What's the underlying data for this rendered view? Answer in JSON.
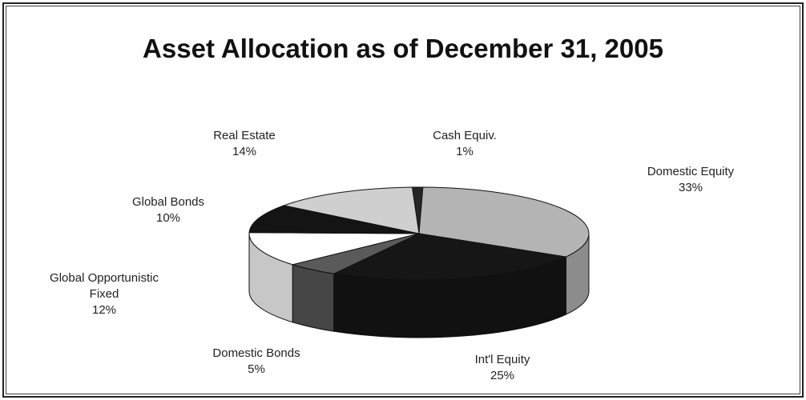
{
  "chart_data": {
    "type": "pie",
    "title": "Asset Allocation as of December 31, 2005",
    "categories": [
      "Cash Equiv.",
      "Domestic Equity",
      "Int'l Equity",
      "Domestic Bonds",
      "Global Opportunistic Fixed",
      "Global Bonds",
      "Real Estate"
    ],
    "values": [
      1,
      33,
      25,
      5,
      12,
      10,
      14
    ],
    "value_labels": [
      "1%",
      "33%",
      "25%",
      "5%",
      "12%",
      "10%",
      "14%"
    ],
    "colors": [
      "#262626",
      "#b4b4b4",
      "#161616",
      "#5a5a5a",
      "#ffffff",
      "#141414",
      "#cfcfcf"
    ]
  }
}
